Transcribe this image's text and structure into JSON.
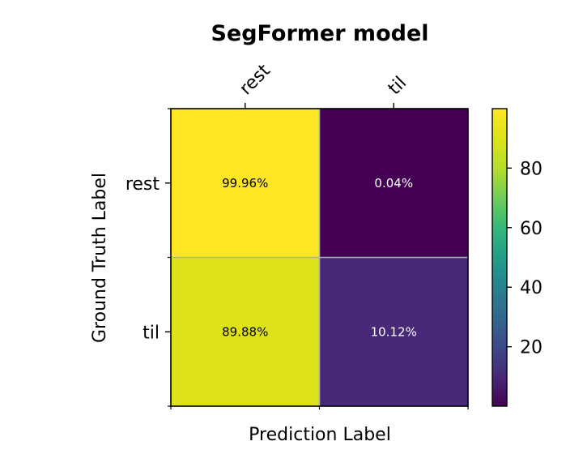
{
  "chart_data": {
    "type": "heatmap",
    "title": "SegFormer model",
    "xlabel": "Prediction Label",
    "ylabel": "Ground Truth Label",
    "x_categories": [
      "rest",
      "til"
    ],
    "y_categories": [
      "rest",
      "til"
    ],
    "values": [
      [
        99.96,
        0.04
      ],
      [
        89.88,
        10.12
      ]
    ],
    "cell_labels": [
      [
        "99.96%",
        "0.04%"
      ],
      [
        "89.88%",
        "10.12%"
      ]
    ],
    "x_tick_position": "top",
    "colormap": "viridis",
    "colorbar": {
      "range": [
        0.04,
        99.96
      ],
      "ticks": [
        20,
        40,
        60,
        80
      ],
      "tick_labels": [
        "20",
        "40",
        "60",
        "80"
      ]
    },
    "grid": true,
    "colors": {
      "grid_line": "#b0b0b0",
      "text_on_dark": "#ffffff",
      "text_on_light": "#000000"
    }
  }
}
